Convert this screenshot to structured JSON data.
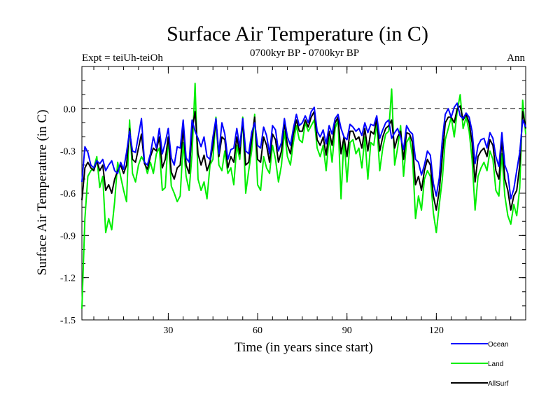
{
  "chart_data": {
    "type": "line",
    "title": "Surface Air Temperature (in C)",
    "subtitle_left": "Expt = teiUh-teiOh",
    "subtitle_center": "0700kyr BP - 0700kyr BP",
    "subtitle_right": "Ann",
    "xlabel": "Time (in years since start)",
    "ylabel": "Surface Air Temperature (in C)",
    "xlim": [
      1,
      150
    ],
    "ylim": [
      -1.5,
      0.3
    ],
    "x_ticks": [
      30,
      60,
      90,
      120
    ],
    "x_tick_labels": [
      "30",
      "60",
      "90",
      "120"
    ],
    "y_ticks": [
      -1.5,
      -1.2,
      -0.9,
      -0.6,
      -0.3,
      0.0
    ],
    "y_tick_labels": [
      "-1.5",
      "-1.2",
      "-0.9",
      "-0.6",
      "-0.3",
      "0.0"
    ],
    "reference_line": 0.0,
    "x_start": 1,
    "x_step": 1,
    "series": [
      {
        "name": "Ocean",
        "color": "#0000ff",
        "values": [
          -0.52,
          -0.27,
          -0.31,
          -0.4,
          -0.42,
          -0.37,
          -0.39,
          -0.36,
          -0.44,
          -0.4,
          -0.37,
          -0.44,
          -0.46,
          -0.38,
          -0.43,
          -0.31,
          -0.16,
          -0.3,
          -0.31,
          -0.19,
          -0.07,
          -0.38,
          -0.4,
          -0.32,
          -0.2,
          -0.28,
          -0.14,
          -0.32,
          -0.24,
          -0.14,
          -0.35,
          -0.4,
          -0.27,
          -0.28,
          -0.08,
          -0.35,
          -0.38,
          -0.08,
          -0.16,
          -0.21,
          -0.27,
          -0.2,
          -0.34,
          -0.36,
          -0.2,
          -0.07,
          -0.32,
          -0.1,
          -0.18,
          -0.36,
          -0.29,
          -0.28,
          -0.14,
          -0.27,
          -0.07,
          -0.3,
          -0.32,
          -0.17,
          -0.1,
          -0.26,
          -0.28,
          -0.13,
          -0.19,
          -0.32,
          -0.12,
          -0.15,
          -0.3,
          -0.24,
          -0.07,
          -0.2,
          -0.26,
          -0.14,
          -0.04,
          -0.12,
          -0.1,
          -0.05,
          -0.1,
          -0.02,
          0.01,
          -0.16,
          -0.2,
          -0.15,
          -0.25,
          -0.12,
          -0.18,
          -0.07,
          -0.04,
          -0.14,
          -0.2,
          -0.22,
          -0.11,
          -0.13,
          -0.16,
          -0.14,
          -0.19,
          -0.1,
          -0.17,
          -0.11,
          -0.12,
          -0.05,
          -0.21,
          -0.15,
          -0.1,
          -0.08,
          -0.21,
          -0.17,
          -0.14,
          -0.2,
          -0.29,
          -0.12,
          -0.16,
          -0.18,
          -0.36,
          -0.38,
          -0.47,
          -0.4,
          -0.3,
          -0.33,
          -0.53,
          -0.62,
          -0.49,
          -0.22,
          -0.04,
          0.0,
          -0.06,
          0.01,
          0.04,
          -0.05,
          -0.07,
          -0.03,
          -0.06,
          -0.16,
          -0.39,
          -0.26,
          -0.22,
          -0.21,
          -0.28,
          -0.17,
          -0.21,
          -0.34,
          -0.41,
          -0.17,
          -0.4,
          -0.46,
          -0.64,
          -0.57,
          -0.44,
          -0.31,
          -0.08,
          -0.13
        ]
      },
      {
        "name": "Land",
        "color": "#00ee00",
        "values": [
          -1.42,
          -0.78,
          -0.48,
          -0.44,
          -0.42,
          -0.34,
          -0.56,
          -0.48,
          -0.88,
          -0.78,
          -0.86,
          -0.66,
          -0.38,
          -0.48,
          -0.58,
          -0.66,
          -0.08,
          -0.46,
          -0.52,
          -0.4,
          -0.34,
          -0.38,
          -0.46,
          -0.38,
          -0.46,
          -0.32,
          -0.28,
          -0.58,
          -0.56,
          -0.2,
          -0.55,
          -0.6,
          -0.66,
          -0.62,
          -0.24,
          -0.48,
          -0.58,
          -0.32,
          0.18,
          -0.5,
          -0.58,
          -0.52,
          -0.64,
          -0.4,
          -0.36,
          -0.06,
          -0.4,
          -0.44,
          -0.3,
          -0.46,
          -0.42,
          -0.54,
          -0.26,
          -0.36,
          -0.06,
          -0.6,
          -0.44,
          -0.3,
          -0.04,
          -0.54,
          -0.58,
          -0.34,
          -0.42,
          -0.46,
          -0.26,
          -0.36,
          -0.52,
          -0.4,
          -0.16,
          -0.34,
          -0.4,
          -0.24,
          -0.12,
          -0.22,
          -0.24,
          -0.1,
          -0.16,
          -0.12,
          -0.08,
          -0.28,
          -0.34,
          -0.26,
          -0.44,
          -0.2,
          -0.38,
          -0.14,
          -0.08,
          -0.64,
          -0.2,
          -0.52,
          -0.24,
          -0.22,
          -0.32,
          -0.28,
          -0.42,
          -0.2,
          -0.5,
          -0.24,
          -0.26,
          -0.1,
          -0.44,
          -0.28,
          -0.18,
          -0.16,
          0.14,
          -0.4,
          -0.28,
          -0.12,
          -0.48,
          -0.24,
          -0.2,
          -0.34,
          -0.78,
          -0.62,
          -0.72,
          -0.5,
          -0.44,
          -0.48,
          -0.74,
          -0.88,
          -0.68,
          -0.5,
          -0.22,
          -0.14,
          -0.06,
          -0.2,
          -0.02,
          0.1,
          -0.14,
          -0.06,
          -0.16,
          -0.36,
          -0.72,
          -0.48,
          -0.42,
          -0.38,
          -0.44,
          -0.3,
          -0.36,
          -0.58,
          -0.62,
          -0.32,
          -0.62,
          -0.76,
          -0.82,
          -0.68,
          -0.76,
          -0.56,
          0.06,
          -0.18
        ]
      },
      {
        "name": "AllSurf",
        "color": "#000000",
        "values": [
          -0.65,
          -0.42,
          -0.38,
          -0.42,
          -0.44,
          -0.37,
          -0.44,
          -0.4,
          -0.58,
          -0.54,
          -0.6,
          -0.5,
          -0.44,
          -0.4,
          -0.46,
          -0.4,
          -0.14,
          -0.36,
          -0.38,
          -0.28,
          -0.18,
          -0.39,
          -0.43,
          -0.34,
          -0.28,
          -0.3,
          -0.2,
          -0.42,
          -0.36,
          -0.2,
          -0.45,
          -0.5,
          -0.42,
          -0.4,
          -0.14,
          -0.4,
          -0.46,
          -0.15,
          -0.02,
          -0.32,
          -0.4,
          -0.33,
          -0.44,
          -0.38,
          -0.26,
          -0.08,
          -0.34,
          -0.2,
          -0.22,
          -0.42,
          -0.34,
          -0.38,
          -0.2,
          -0.32,
          -0.08,
          -0.4,
          -0.38,
          -0.22,
          -0.06,
          -0.36,
          -0.38,
          -0.2,
          -0.26,
          -0.38,
          -0.18,
          -0.22,
          -0.38,
          -0.3,
          -0.1,
          -0.26,
          -0.32,
          -0.18,
          -0.08,
          -0.16,
          -0.16,
          -0.08,
          -0.13,
          -0.06,
          -0.02,
          -0.22,
          -0.26,
          -0.2,
          -0.33,
          -0.16,
          -0.26,
          -0.1,
          -0.06,
          -0.32,
          -0.2,
          -0.34,
          -0.16,
          -0.16,
          -0.22,
          -0.2,
          -0.28,
          -0.14,
          -0.3,
          -0.16,
          -0.18,
          -0.07,
          -0.3,
          -0.2,
          -0.14,
          -0.12,
          -0.08,
          -0.28,
          -0.2,
          -0.16,
          -0.36,
          -0.17,
          -0.18,
          -0.24,
          -0.54,
          -0.48,
          -0.58,
          -0.44,
          -0.36,
          -0.4,
          -0.62,
          -0.72,
          -0.58,
          -0.34,
          -0.1,
          -0.06,
          -0.06,
          -0.1,
          0.0,
          0.02,
          -0.08,
          -0.04,
          -0.1,
          -0.24,
          -0.52,
          -0.34,
          -0.3,
          -0.28,
          -0.34,
          -0.22,
          -0.26,
          -0.44,
          -0.5,
          -0.22,
          -0.5,
          -0.58,
          -0.72,
          -0.62,
          -0.58,
          -0.4,
          -0.02,
          -0.14
        ]
      }
    ],
    "legend_position": "bottom-right"
  }
}
